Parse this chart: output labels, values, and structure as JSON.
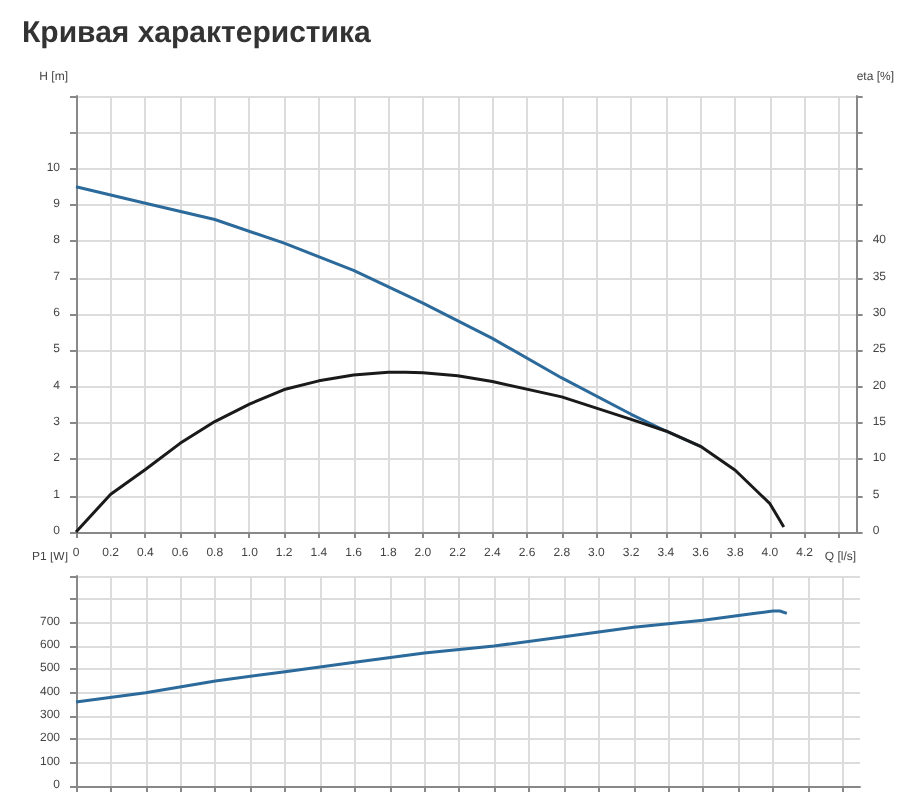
{
  "chart_data": [
    {
      "type": "line",
      "title": "Кривая характеристика",
      "xlabel": "Q [l/s]",
      "ylabel": "H [m]",
      "y2label": "eta [%]",
      "marker": "none",
      "grid": true,
      "xlim": [
        0,
        4.5
      ],
      "xticks": [
        0,
        0.2,
        0.4,
        0.6,
        0.8,
        {
          "value": 1,
          "label": "1.0"
        },
        1.2,
        1.4,
        1.6,
        1.8,
        {
          "value": 2,
          "label": "2.0"
        },
        2.2,
        2.4,
        2.6,
        2.8,
        {
          "value": 3,
          "label": "3.0"
        },
        3.2,
        3.4,
        3.6,
        3.8,
        {
          "value": 4,
          "label": "4.0"
        },
        4.2,
        {
          "value": 4.4,
          "label": null
        }
      ],
      "ylim": [
        0,
        12
      ],
      "yticks": [
        0,
        1,
        2,
        3,
        4,
        5,
        6,
        7,
        8,
        9,
        10,
        {
          "value": 11,
          "label": null
        },
        {
          "value": 12,
          "label": null
        }
      ],
      "y2lim": [
        0,
        60
      ],
      "y2ticks": [
        0,
        5,
        10,
        15,
        20,
        25,
        30,
        35,
        40,
        {
          "value": 45,
          "label": null
        },
        {
          "value": 50,
          "label": null
        },
        {
          "value": 55,
          "label": null
        },
        {
          "value": 60,
          "label": null
        }
      ],
      "series": [
        {
          "color": "#2b6a9a",
          "x": [
            0,
            0.4,
            0.8,
            1.2,
            1.6,
            2.0,
            2.4,
            2.8,
            3.2,
            3.4,
            3.6
          ],
          "values": [
            9.5,
            9.05,
            8.6,
            7.95,
            7.2,
            6.3,
            5.33,
            4.24,
            3.24,
            2.78,
            2.36
          ]
        },
        {
          "color": "#1a1a1a",
          "axis": "y2",
          "x": [
            0,
            0.2,
            0.4,
            0.6,
            0.8,
            1.0,
            1.2,
            1.4,
            1.6,
            1.8,
            1.9,
            2.0,
            2.2,
            2.4,
            2.8,
            3.2,
            3.4,
            3.6,
            3.8,
            4.0,
            4.08
          ],
          "values": [
            0,
            5.2,
            8.6,
            12.2,
            15.2,
            17.6,
            19.6,
            20.8,
            21.6,
            22,
            22,
            21.9,
            21.5,
            20.7,
            18.6,
            15.5,
            13.9,
            11.8,
            8.5,
            3.9,
            0.7
          ]
        }
      ]
    },
    {
      "type": "line",
      "ylabel": "P1 [W]",
      "marker": "none",
      "grid": true,
      "tick_labels": "y",
      "xlim": [
        0,
        4.5
      ],
      "xticks": [
        0,
        0.2,
        0.4,
        0.6,
        0.8,
        1.0,
        1.2,
        1.4,
        1.6,
        1.8,
        2.0,
        2.2,
        2.4,
        2.6,
        2.8,
        3.0,
        3.2,
        3.4,
        3.6,
        3.8,
        4.0,
        4.2,
        4.4
      ],
      "ylim": [
        0,
        900
      ],
      "yticks": [
        0,
        100,
        200,
        300,
        400,
        500,
        600,
        700,
        {
          "value": 800,
          "label": null
        },
        {
          "value": 900,
          "label": null
        }
      ],
      "series": [
        {
          "color": "#2b6a9a",
          "x": [
            0,
            0.4,
            0.8,
            1.2,
            1.6,
            2.0,
            2.4,
            2.8,
            3.2,
            3.6,
            3.9,
            4.0,
            4.04,
            4.08
          ],
          "values": [
            360,
            400,
            450,
            490,
            530,
            570,
            600,
            640,
            680,
            710,
            740,
            750,
            750,
            740
          ]
        }
      ]
    }
  ]
}
